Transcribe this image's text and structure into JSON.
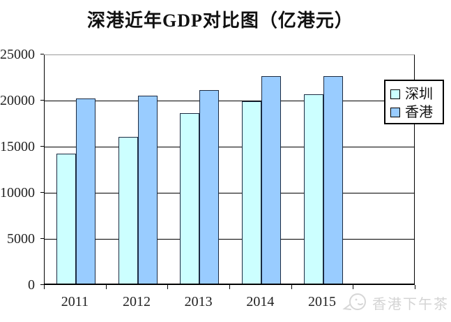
{
  "title": "深港近年GDP对比图（亿港元）",
  "watermark": {
    "text": "香港下午茶",
    "icon": "fish-logo-icon"
  },
  "colors": {
    "shenzhen_fill": "#ccffff",
    "hongkong_fill": "#99ccff",
    "bar_border": "#1b2a41",
    "gridline": "#000000",
    "watermark_gray": "#d4d4d4"
  },
  "legend": {
    "entries": [
      "深圳",
      "香港"
    ]
  },
  "chart_data": {
    "type": "bar",
    "title": "深港近年GDP对比图（亿港元）",
    "unit": "亿港元",
    "categories": [
      "2011",
      "2012",
      "2013",
      "2014",
      "2015"
    ],
    "series": [
      {
        "name": "深圳",
        "color": "#ccffff",
        "values": [
          14100,
          15900,
          18500,
          19800,
          20500
        ]
      },
      {
        "name": "香港",
        "color": "#99ccff",
        "values": [
          20100,
          20400,
          21000,
          22500,
          22500
        ]
      }
    ],
    "ylim": [
      0,
      25000
    ],
    "ytick_interval": 5000,
    "ytick_labels": [
      "0",
      "5000",
      "10000",
      "15000",
      "20000",
      "25000"
    ],
    "grid": true,
    "legend_position": "right-inside",
    "xlabel": "",
    "ylabel": ""
  }
}
